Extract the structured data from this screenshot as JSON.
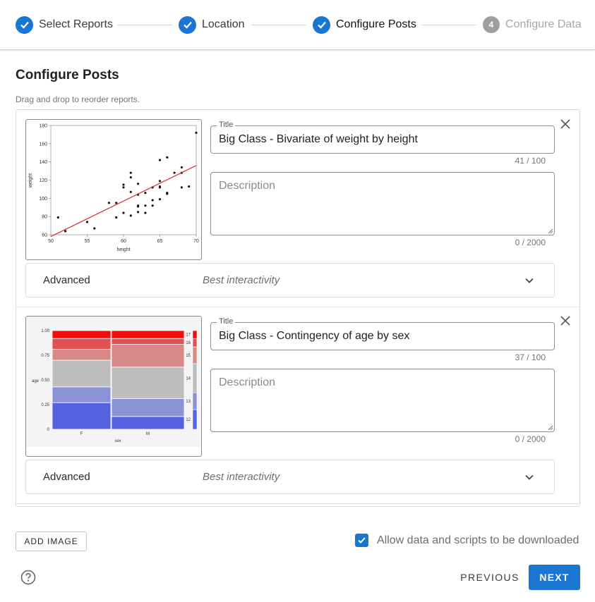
{
  "stepper": {
    "steps": [
      {
        "label": "Select Reports",
        "state": "done",
        "icon": "check-icon"
      },
      {
        "label": "Location",
        "state": "done",
        "icon": "check-icon"
      },
      {
        "label": "Configure Posts",
        "state": "active",
        "icon": "check-icon"
      },
      {
        "label": "Configure Data",
        "state": "pending",
        "number": "4"
      }
    ]
  },
  "page": {
    "title": "Configure Posts",
    "hint": "Drag and drop to reorder reports."
  },
  "posts": [
    {
      "thumbnail": {
        "type": "scatter",
        "xlabel": "height",
        "ylabel": "weight",
        "xticks": [
          "50",
          "55",
          "60",
          "65",
          "70"
        ],
        "yticks": [
          "60",
          "80",
          "100",
          "120",
          "140",
          "160",
          "180"
        ]
      },
      "title_label": "Title",
      "title_value": "Big Class - Bivariate of weight by height",
      "title_counter": "41 / 100",
      "description_placeholder": "Description",
      "description_counter": "0 / 2000",
      "advanced_label": "Advanced",
      "advanced_value": "Best interactivity"
    },
    {
      "thumbnail": {
        "type": "mosaic",
        "xlabel": "sex",
        "ylabel": "age",
        "xticks": [
          "F",
          "M"
        ],
        "yticks": [
          "0",
          "0.25",
          "0.50",
          "0.75",
          "1.00"
        ],
        "legend": [
          "17",
          "16",
          "15",
          "14",
          "13",
          "12"
        ]
      },
      "title_label": "Title",
      "title_value": "Big Class - Contingency of age by sex",
      "title_counter": "37 / 100",
      "description_placeholder": "Description",
      "description_counter": "0 / 2000",
      "advanced_label": "Advanced",
      "advanced_value": "Best interactivity"
    }
  ],
  "chart_data": [
    {
      "type": "scatter",
      "xlabel": "height",
      "ylabel": "weight",
      "xlim": [
        50,
        70
      ],
      "ylim": [
        60,
        180
      ],
      "points": [
        [
          51,
          79
        ],
        [
          52,
          64
        ],
        [
          55,
          74
        ],
        [
          56,
          67
        ],
        [
          58,
          95
        ],
        [
          59,
          95
        ],
        [
          59,
          79
        ],
        [
          60,
          84
        ],
        [
          60,
          112
        ],
        [
          60,
          115
        ],
        [
          61,
          123
        ],
        [
          61,
          128
        ],
        [
          61,
          107
        ],
        [
          61,
          81
        ],
        [
          62,
          85
        ],
        [
          62,
          91
        ],
        [
          62,
          92
        ],
        [
          62,
          104
        ],
        [
          62,
          116
        ],
        [
          63,
          84
        ],
        [
          63,
          92
        ],
        [
          63,
          106
        ],
        [
          64,
          98
        ],
        [
          64,
          112
        ],
        [
          64,
          92
        ],
        [
          65,
          112
        ],
        [
          65,
          119
        ],
        [
          65,
          142
        ],
        [
          65,
          99
        ],
        [
          65,
          113
        ],
        [
          66,
          145
        ],
        [
          66,
          105
        ],
        [
          66,
          106
        ],
        [
          67,
          128
        ],
        [
          68,
          134
        ],
        [
          68,
          128
        ],
        [
          68,
          112
        ],
        [
          69,
          113
        ],
        [
          70,
          172
        ]
      ],
      "fit_line": [
        [
          50,
          58
        ],
        [
          70,
          136
        ]
      ],
      "fit_color": "#d03030"
    },
    {
      "type": "mosaic",
      "xlabel": "sex",
      "ylabel": "age",
      "categories": [
        "F",
        "M"
      ],
      "ylim": [
        0,
        1
      ],
      "series": [
        {
          "name": "12",
          "values": [
            0.27,
            0.13
          ]
        },
        {
          "name": "13",
          "values": [
            0.16,
            0.18
          ]
        },
        {
          "name": "14",
          "values": [
            0.27,
            0.32
          ]
        },
        {
          "name": "15",
          "values": [
            0.11,
            0.23
          ]
        },
        {
          "name": "16",
          "values": [
            0.11,
            0.06
          ]
        },
        {
          "name": "17",
          "values": [
            0.08,
            0.08
          ]
        }
      ],
      "colors": [
        "#5462e0",
        "#8a92d6",
        "#bdbdbd",
        "#d98888",
        "#e05252",
        "#f20d0d"
      ]
    }
  ],
  "footer": {
    "add_image_label": "ADD IMAGE",
    "allow_download_label": "Allow data and scripts to be downloaded",
    "allow_download_checked": true,
    "previous_label": "PREVIOUS",
    "next_label": "NEXT"
  },
  "colors": {
    "primary": "#1976d2",
    "disabled": "#9e9e9e"
  }
}
